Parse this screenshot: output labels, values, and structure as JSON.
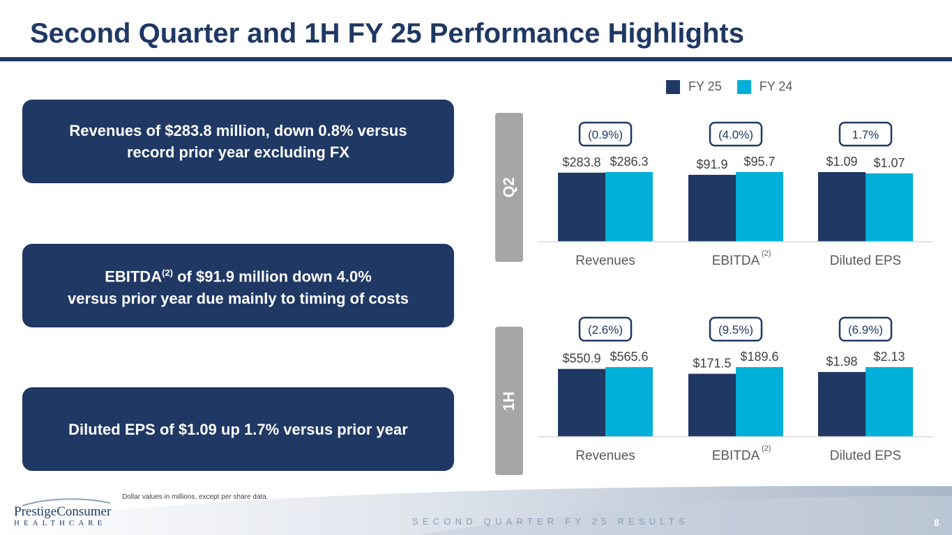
{
  "page": {
    "title": "Second Quarter and 1H FY 25 Performance Highlights",
    "footnote": "Dollar values in millions, except per share data.",
    "footer": "SECOND QUARTER FY 25 RESULTS",
    "page_number": "8"
  },
  "logo": {
    "brand": "PrestigeConsumer",
    "sub": "HEALTHCARE"
  },
  "callouts": [
    {
      "lines": [
        "Revenues of $283.8 million, down 0.8% versus",
        "record prior year excluding FX"
      ]
    },
    {
      "lead": "EBITDA",
      "sup": "(2)",
      "rest": " of $91.9 million down 4.0%",
      "line2": "versus prior year due mainly to timing of costs"
    },
    {
      "lines": [
        "Diluted EPS of $1.09 up 1.7% versus prior year"
      ]
    }
  ],
  "legend": [
    {
      "label": "FY 25",
      "color": "#1f3864"
    },
    {
      "label": "FY 24",
      "color": "#00b0d8"
    }
  ],
  "colors": {
    "fy25": "#1f3864",
    "fy24": "#00b0d8",
    "badge_border": "#1f3864",
    "label_text": "#404040",
    "axis_text": "#595959"
  },
  "chart_data": [
    {
      "type": "bar",
      "title": "Q2",
      "categories": [
        "Revenues",
        "EBITDA",
        "Diluted EPS"
      ],
      "category_superscripts": [
        "",
        "(2)",
        ""
      ],
      "series": [
        {
          "name": "FY 25",
          "values": [
            283.8,
            91.9,
            1.09
          ],
          "labels": [
            "$283.8",
            "$91.9",
            "$1.09"
          ]
        },
        {
          "name": "FY 24",
          "values": [
            286.3,
            95.7,
            1.07
          ],
          "labels": [
            "$286.3",
            "$95.7",
            "$1.07"
          ]
        }
      ],
      "changes": [
        "(0.9%)",
        "(4.0%)",
        "1.7%"
      ],
      "legend_position": "top-right"
    },
    {
      "type": "bar",
      "title": "1H",
      "categories": [
        "Revenues",
        "EBITDA",
        "Diluted EPS"
      ],
      "category_superscripts": [
        "",
        "(2)",
        ""
      ],
      "series": [
        {
          "name": "FY 25",
          "values": [
            550.9,
            171.5,
            1.98
          ],
          "labels": [
            "$550.9",
            "$171.5",
            "$1.98"
          ]
        },
        {
          "name": "FY 24",
          "values": [
            565.6,
            189.6,
            2.13
          ],
          "labels": [
            "$565.6",
            "$189.6",
            "$2.13"
          ]
        }
      ],
      "changes": [
        "(2.6%)",
        "(9.5%)",
        "(6.9%)"
      ]
    }
  ]
}
